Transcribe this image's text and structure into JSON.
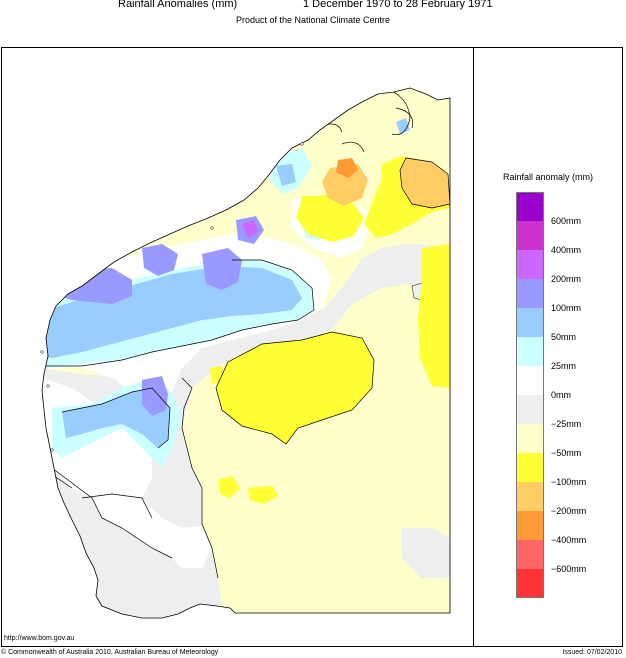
{
  "header": {
    "title": "Rainfall Anomalies (mm)",
    "period": "1 December 1970 to 28 February 1971",
    "subtitle": "Product of the National Climate Centre"
  },
  "legend": {
    "title": "Rainfall anomaly (mm)",
    "colors": [
      "#9900cc",
      "#cc33cc",
      "#cc66ff",
      "#9999ff",
      "#99ccff",
      "#ccffff",
      "#ffffff",
      "#eeeeee",
      "#ffffcc",
      "#ffff33",
      "#ffcc66",
      "#ff9933",
      "#ff6666",
      "#ff3333"
    ],
    "labels": [
      "600mm",
      "400mm",
      "200mm",
      "100mm",
      "50mm",
      "25mm",
      "0mm",
      "−25mm",
      "−50mm",
      "−100mm",
      "−200mm",
      "−400mm",
      "−600mm"
    ]
  },
  "footer": {
    "url": "http://www.bom.gov.au",
    "copyright": "© Commonwealth of Australia 2010, Australian Bureau of Meteorology",
    "issued": "Issued: 07/02/2010"
  }
}
